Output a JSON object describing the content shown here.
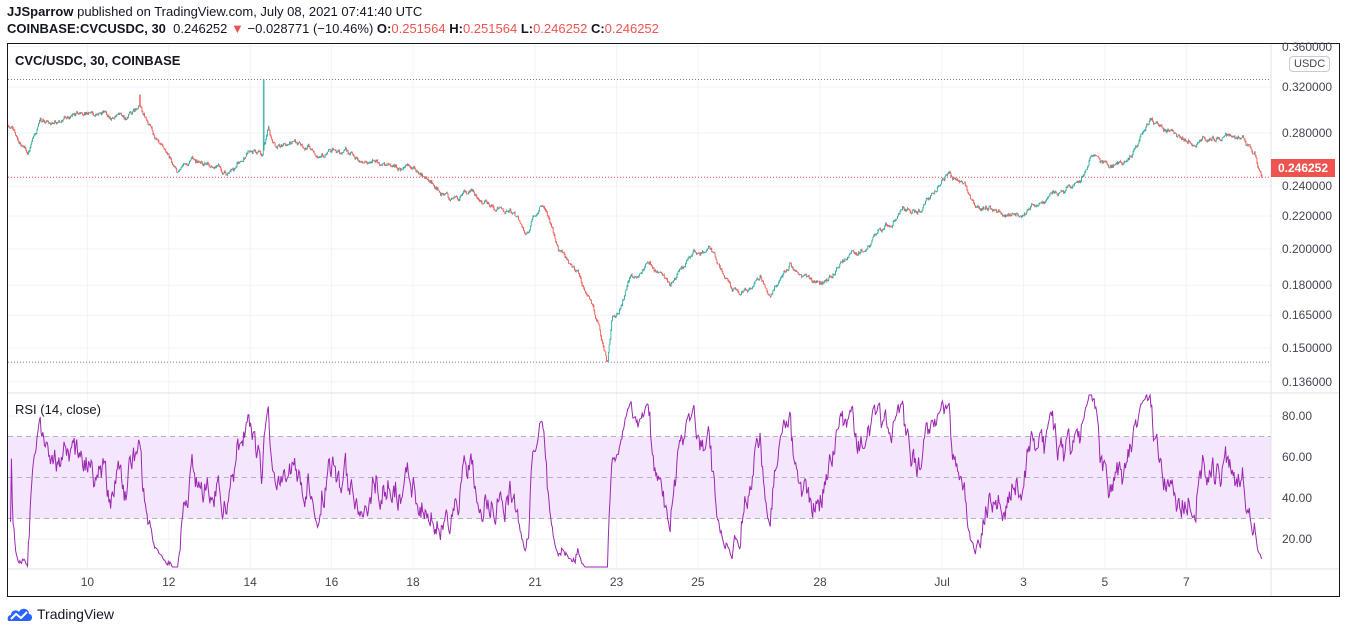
{
  "header": {
    "author": "JJSparrow",
    "published": "published on TradingView.com, July 08, 2021 07:41:40 UTC",
    "symbol": "COINBASE:CVCUSDC, 30",
    "last": "0.246252",
    "change": "−0.028771 (−10.46%)",
    "o_label": "O:",
    "o": "0.251564",
    "h_label": "H:",
    "h": "0.251564",
    "l_label": "L:",
    "l": "0.246252",
    "c_label": "C:",
    "c": "0.246252"
  },
  "footer": {
    "brand": "TradingView"
  },
  "colors": {
    "up": "#26a69a",
    "down": "#ef5350",
    "rsi": "#9c27b0",
    "rsi_band": "#f3e6fd"
  },
  "chart_data": [
    {
      "type": "candlestick",
      "title": "CVC/USDC, 30, COINBASE",
      "currency_badge": "USDC",
      "last_price_label": "0.246252",
      "last_price": 0.246252,
      "scale": "log",
      "ylim": [
        0.1315,
        0.367
      ],
      "y_ticks": [
        "0.360000",
        "0.320000",
        "0.280000",
        "0.240000",
        "0.220000",
        "0.200000",
        "0.180000",
        "0.165000",
        "0.150000",
        "0.136000"
      ],
      "y_tick_values": [
        0.36,
        0.32,
        0.28,
        0.24,
        0.22,
        0.2,
        0.18,
        0.165,
        0.15,
        0.136
      ],
      "x_unit": "days since Jun 8 2021 00:00 UTC",
      "x_ticks": [
        "10",
        "12",
        "14",
        "16",
        "18",
        "21",
        "23",
        "25",
        "28",
        "Jul",
        "3",
        "5",
        "7"
      ],
      "x_tick_days": [
        2,
        4,
        6,
        8,
        10,
        13,
        15,
        17,
        20,
        23,
        25,
        27,
        29
      ],
      "period_high": 0.327,
      "period_low": 0.144,
      "approx_path": [
        [
          0.05,
          0.287
        ],
        [
          0.54,
          0.267
        ],
        [
          0.84,
          0.287
        ],
        [
          1.33,
          0.292
        ],
        [
          2.06,
          0.298
        ],
        [
          2.56,
          0.295
        ],
        [
          2.92,
          0.291
        ],
        [
          3.29,
          0.299
        ],
        [
          3.54,
          0.283
        ],
        [
          3.91,
          0.259
        ],
        [
          4.23,
          0.246
        ],
        [
          4.64,
          0.257
        ],
        [
          5.14,
          0.255
        ],
        [
          5.63,
          0.25
        ],
        [
          5.95,
          0.267
        ],
        [
          6.29,
          0.263
        ],
        [
          6.44,
          0.283
        ],
        [
          6.61,
          0.27
        ],
        [
          7.22,
          0.273
        ],
        [
          7.96,
          0.267
        ],
        [
          8.7,
          0.259
        ],
        [
          9.43,
          0.257
        ],
        [
          9.93,
          0.252
        ],
        [
          10.42,
          0.244
        ],
        [
          10.91,
          0.23
        ],
        [
          11.4,
          0.234
        ],
        [
          11.89,
          0.23
        ],
        [
          12.38,
          0.224
        ],
        [
          12.75,
          0.21
        ],
        [
          13.12,
          0.227
        ],
        [
          13.37,
          0.214
        ],
        [
          13.61,
          0.199
        ],
        [
          13.86,
          0.191
        ],
        [
          14.1,
          0.183
        ],
        [
          14.35,
          0.172
        ],
        [
          14.59,
          0.158
        ],
        [
          14.77,
          0.145
        ],
        [
          14.89,
          0.163
        ],
        [
          15.09,
          0.168
        ],
        [
          15.33,
          0.185
        ],
        [
          15.82,
          0.191
        ],
        [
          16.31,
          0.18
        ],
        [
          16.81,
          0.194
        ],
        [
          17.3,
          0.199
        ],
        [
          17.67,
          0.185
        ],
        [
          18.03,
          0.175
        ],
        [
          18.53,
          0.185
        ],
        [
          18.77,
          0.178
        ],
        [
          19.26,
          0.191
        ],
        [
          19.51,
          0.183
        ],
        [
          20.0,
          0.181
        ],
        [
          20.49,
          0.193
        ],
        [
          20.98,
          0.199
        ],
        [
          21.47,
          0.211
        ],
        [
          21.97,
          0.224
        ],
        [
          22.46,
          0.224
        ],
        [
          22.83,
          0.237
        ],
        [
          23.19,
          0.252
        ],
        [
          23.56,
          0.237
        ],
        [
          23.81,
          0.227
        ],
        [
          24.18,
          0.227
        ],
        [
          24.55,
          0.222
        ],
        [
          24.91,
          0.224
        ],
        [
          25.41,
          0.229
        ],
        [
          25.9,
          0.234
        ],
        [
          26.39,
          0.241
        ],
        [
          26.63,
          0.259
        ],
        [
          27.13,
          0.253
        ],
        [
          27.49,
          0.254
        ],
        [
          27.74,
          0.267
        ],
        [
          28.11,
          0.287
        ],
        [
          28.49,
          0.283
        ],
        [
          28.85,
          0.274
        ],
        [
          29.34,
          0.278
        ],
        [
          30.07,
          0.276
        ],
        [
          30.44,
          0.274
        ],
        [
          30.69,
          0.263
        ],
        [
          30.86,
          0.246
        ]
      ],
      "spikes": [
        [
          3.29,
          0.313
        ],
        [
          6.33,
          0.327
        ],
        [
          14.77,
          0.144
        ]
      ]
    },
    {
      "type": "line",
      "title": "RSI (14, close)",
      "ylim": [
        5,
        91
      ],
      "y_ticks": [
        "80.00",
        "60.00",
        "40.00",
        "20.00"
      ],
      "y_tick_values": [
        80,
        60,
        40,
        20
      ],
      "band": [
        30,
        70
      ],
      "midline": 50,
      "period": 14
    }
  ]
}
